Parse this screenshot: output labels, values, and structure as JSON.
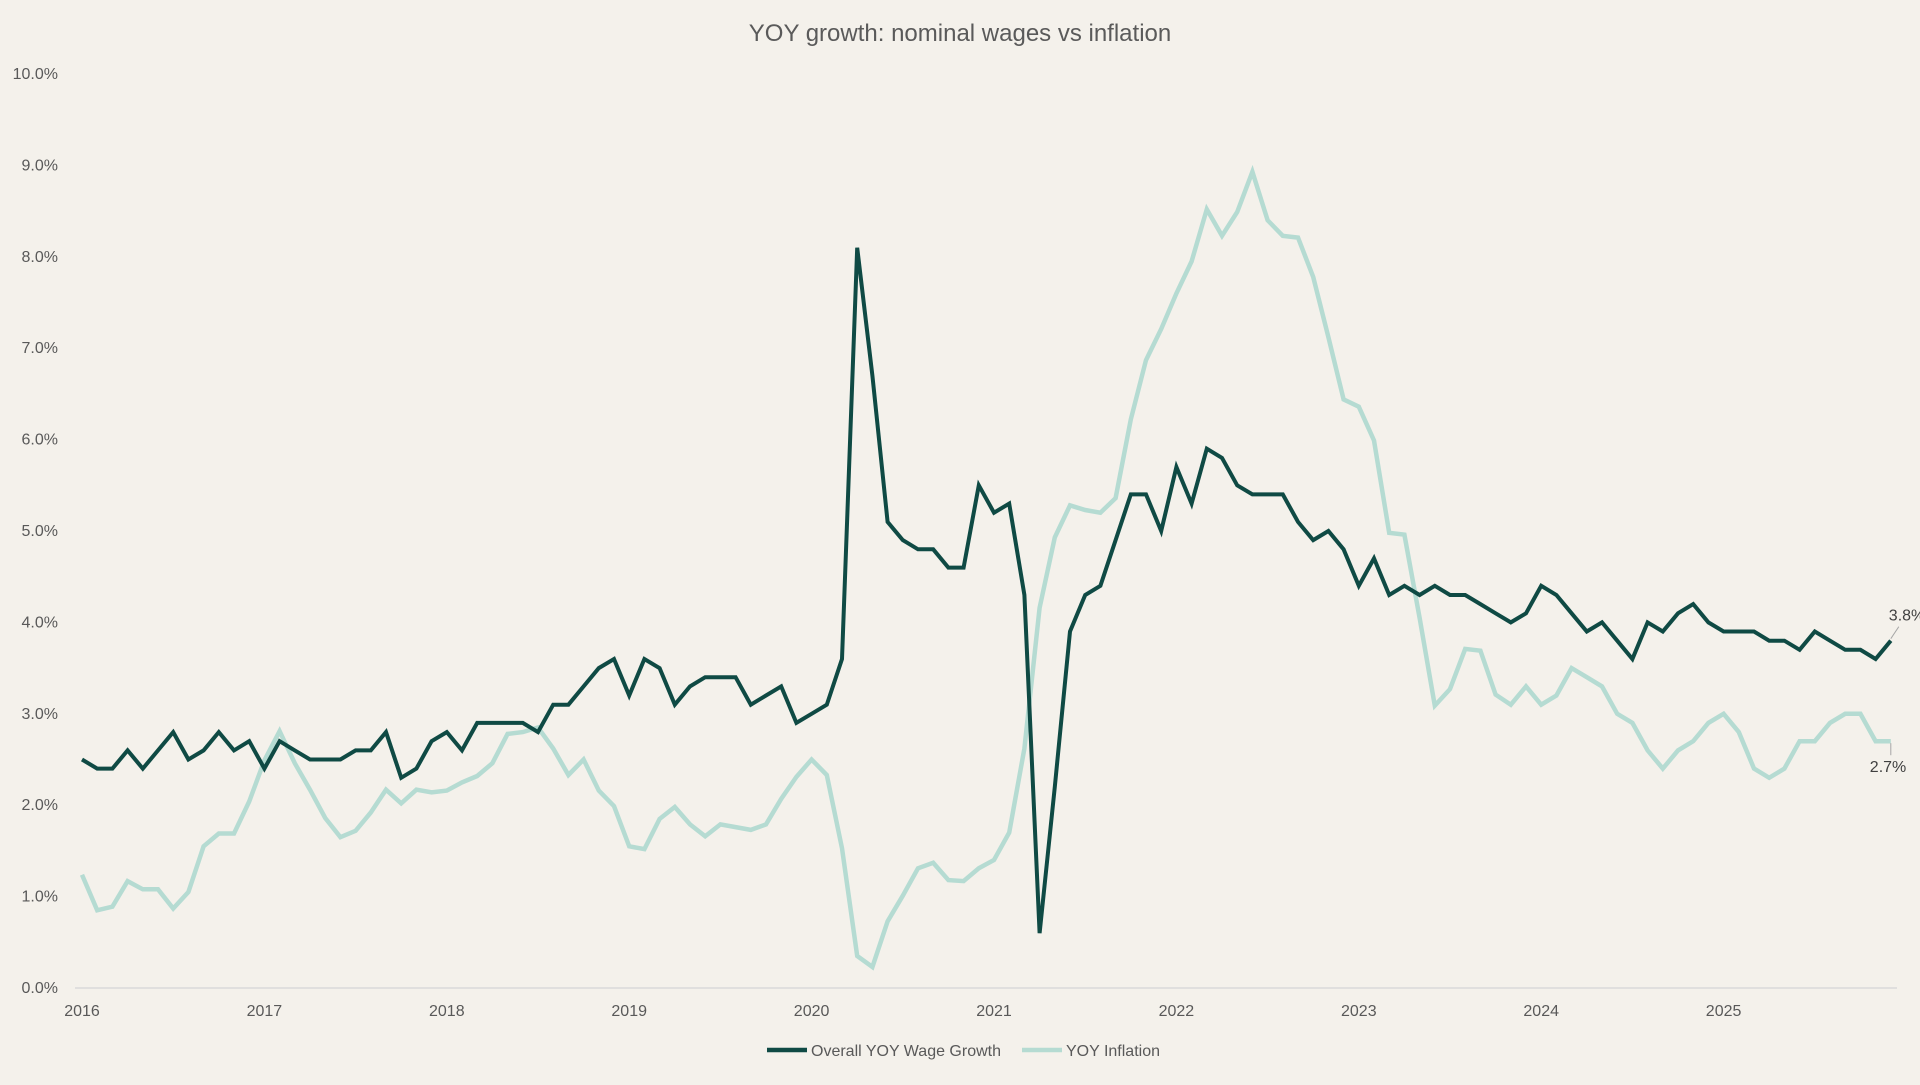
{
  "chart_data": {
    "type": "line",
    "title": "YOY growth: nominal wages vs inflation",
    "xlabel": "",
    "ylabel": "",
    "ylim": [
      0,
      10
    ],
    "y_ticks": [
      "0.0%",
      "1.0%",
      "2.0%",
      "3.0%",
      "4.0%",
      "5.0%",
      "6.0%",
      "7.0%",
      "8.0%",
      "9.0%",
      "10.0%"
    ],
    "x_ticks": [
      "2016",
      "2017",
      "2018",
      "2019",
      "2020",
      "2021",
      "2022",
      "2023",
      "2024",
      "2025"
    ],
    "x_start": "2016-01",
    "legend_position": "bottom",
    "series": [
      {
        "name": "Overall YOY Wage Growth",
        "color": "#0f4a44",
        "end_label": "3.8%",
        "values": [
          2.5,
          2.4,
          2.4,
          2.6,
          2.4,
          2.6,
          2.8,
          2.5,
          2.6,
          2.8,
          2.6,
          2.7,
          2.4,
          2.7,
          2.6,
          2.5,
          2.5,
          2.5,
          2.6,
          2.6,
          2.8,
          2.3,
          2.4,
          2.7,
          2.8,
          2.6,
          2.9,
          2.9,
          2.9,
          2.9,
          2.8,
          3.1,
          3.1,
          3.3,
          3.5,
          3.6,
          3.2,
          3.6,
          3.5,
          3.1,
          3.3,
          3.4,
          3.4,
          3.4,
          3.1,
          3.2,
          3.3,
          2.9,
          3.0,
          3.1,
          3.6,
          8.1,
          6.7,
          5.1,
          4.9,
          4.8,
          4.8,
          4.6,
          4.6,
          5.5,
          5.2,
          5.3,
          4.3,
          0.6,
          2.2,
          3.9,
          4.3,
          4.4,
          4.9,
          5.4,
          5.4,
          5.0,
          5.7,
          5.3,
          5.9,
          5.8,
          5.5,
          5.4,
          5.4,
          5.4,
          5.1,
          4.9,
          5.0,
          4.8,
          4.4,
          4.7,
          4.3,
          4.4,
          4.3,
          4.4,
          4.3,
          4.3,
          4.2,
          4.1,
          4.0,
          4.1,
          4.4,
          4.3,
          4.1,
          3.9,
          4.0,
          3.8,
          3.6,
          4.0,
          3.9,
          4.1,
          4.2,
          4.0,
          3.9,
          3.9,
          3.9,
          3.8,
          3.8,
          3.7,
          3.9,
          3.8,
          3.7,
          3.7,
          3.6,
          3.8
        ]
      },
      {
        "name": "YOY Inflation",
        "color": "#b5dbd2",
        "end_label": "2.7%",
        "values": [
          1.24,
          0.85,
          0.89,
          1.17,
          1.08,
          1.08,
          0.87,
          1.05,
          1.55,
          1.69,
          1.69,
          2.04,
          2.49,
          2.81,
          2.46,
          2.17,
          1.86,
          1.65,
          1.72,
          1.92,
          2.17,
          2.02,
          2.17,
          2.14,
          2.16,
          2.25,
          2.32,
          2.46,
          2.78,
          2.8,
          2.85,
          2.62,
          2.33,
          2.5,
          2.16,
          1.99,
          1.55,
          1.52,
          1.85,
          1.98,
          1.79,
          1.66,
          1.79,
          1.76,
          1.73,
          1.79,
          2.07,
          2.31,
          2.5,
          2.33,
          1.53,
          0.35,
          0.23,
          0.73,
          1.01,
          1.31,
          1.37,
          1.18,
          1.17,
          1.31,
          1.4,
          1.7,
          2.62,
          4.16,
          4.93,
          5.28,
          5.23,
          5.2,
          5.36,
          6.22,
          6.87,
          7.21,
          7.6,
          7.95,
          8.52,
          8.23,
          8.49,
          8.93,
          8.4,
          8.23,
          8.21,
          7.78,
          7.12,
          6.44,
          6.36,
          5.99,
          4.98,
          4.96,
          4.05,
          3.09,
          3.27,
          3.71,
          3.69,
          3.21,
          3.1,
          3.3,
          3.1,
          3.2,
          3.5,
          3.4,
          3.3,
          3.0,
          2.9,
          2.6,
          2.4,
          2.6,
          2.7,
          2.9,
          3.0,
          2.8,
          2.4,
          2.3,
          2.4,
          2.7,
          2.7,
          2.9,
          3.0,
          3.0,
          2.7,
          2.7
        ]
      }
    ]
  }
}
